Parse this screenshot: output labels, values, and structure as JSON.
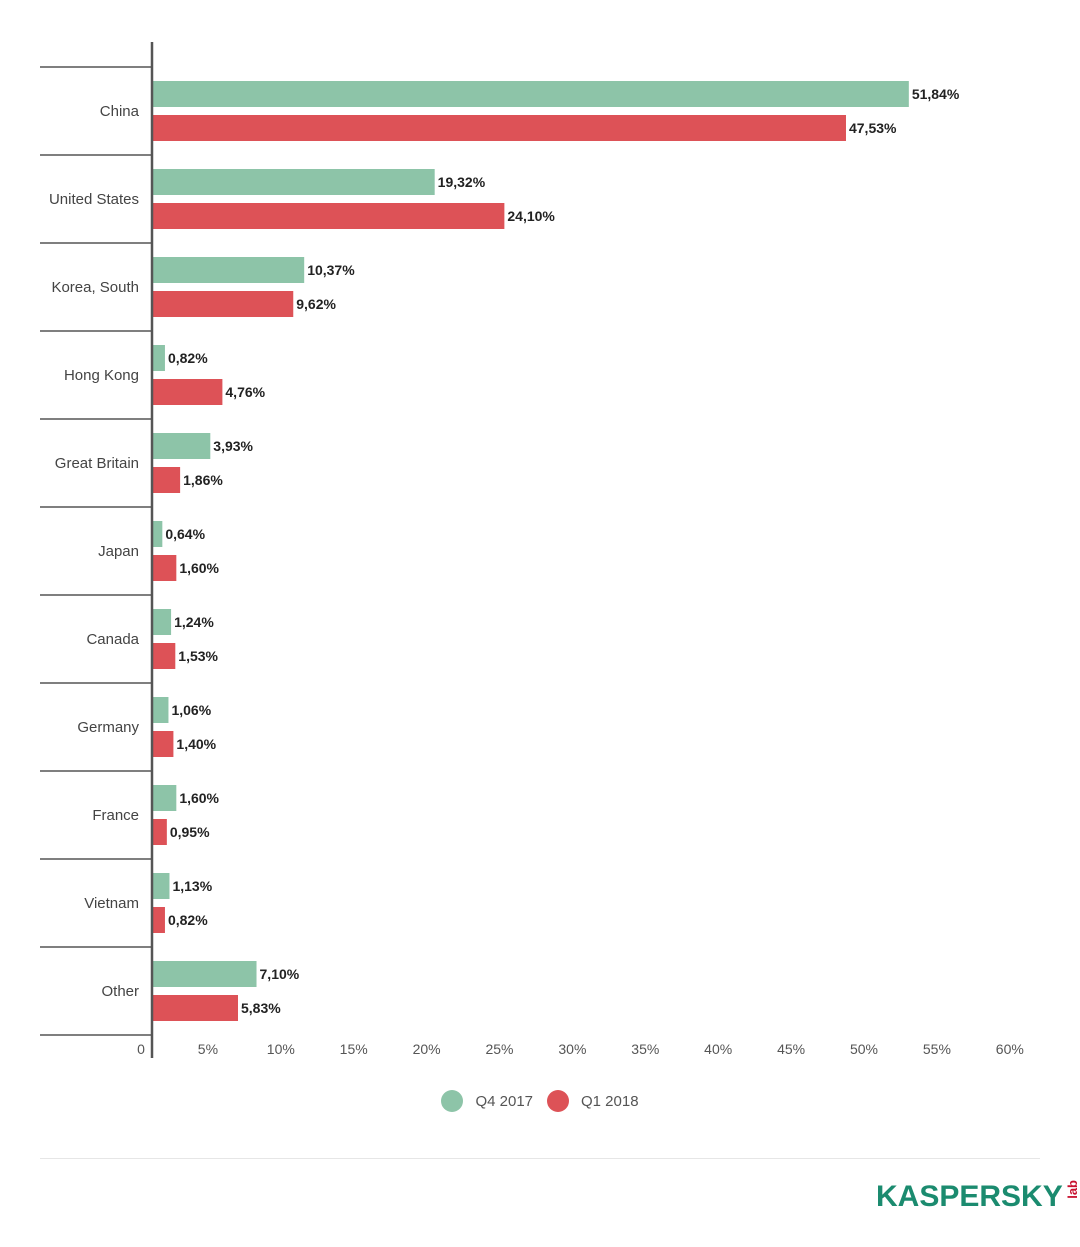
{
  "chart_data": {
    "type": "bar",
    "orientation": "horizontal",
    "categories": [
      "China",
      "United States",
      "Korea, South",
      "Hong Kong",
      "Great Britain",
      "Japan",
      "Canada",
      "Germany",
      "France",
      "Vietnam",
      "Other"
    ],
    "series": [
      {
        "name": "Q4 2017",
        "color": "#8dc4a8",
        "values": [
          51.84,
          19.32,
          10.37,
          0.82,
          3.93,
          0.64,
          1.24,
          1.06,
          1.6,
          1.13,
          7.1
        ],
        "labels": [
          "51,84%",
          "19,32%",
          "10,37%",
          "0,82%",
          "3,93%",
          "0,64%",
          "1,24%",
          "1,06%",
          "1,60%",
          "1,13%",
          "7,10%"
        ]
      },
      {
        "name": "Q1 2018",
        "color": "#dd5257",
        "values": [
          47.53,
          24.1,
          9.62,
          4.76,
          1.86,
          1.6,
          1.53,
          1.4,
          0.95,
          0.82,
          5.83
        ],
        "labels": [
          "47,53%",
          "24,10%",
          "9,62%",
          "4,76%",
          "1,86%",
          "1,60%",
          "1,53%",
          "1,40%",
          "0,95%",
          "0,82%",
          "5,83%"
        ]
      }
    ],
    "xlim": [
      0,
      60
    ],
    "xticks": [
      0,
      5,
      10,
      15,
      20,
      25,
      30,
      35,
      40,
      45,
      50,
      55,
      60
    ],
    "xtick_labels": [
      "0",
      "5%",
      "10%",
      "15%",
      "20%",
      "25%",
      "30%",
      "35%",
      "40%",
      "45%",
      "50%",
      "55%",
      "60%"
    ],
    "legend": "bottom-center",
    "grid": false
  },
  "legend": {
    "q4": "Q4 2017",
    "q1": "Q1 2018"
  },
  "logo": {
    "text": "KASPERSKY",
    "suffix": "lab"
  }
}
